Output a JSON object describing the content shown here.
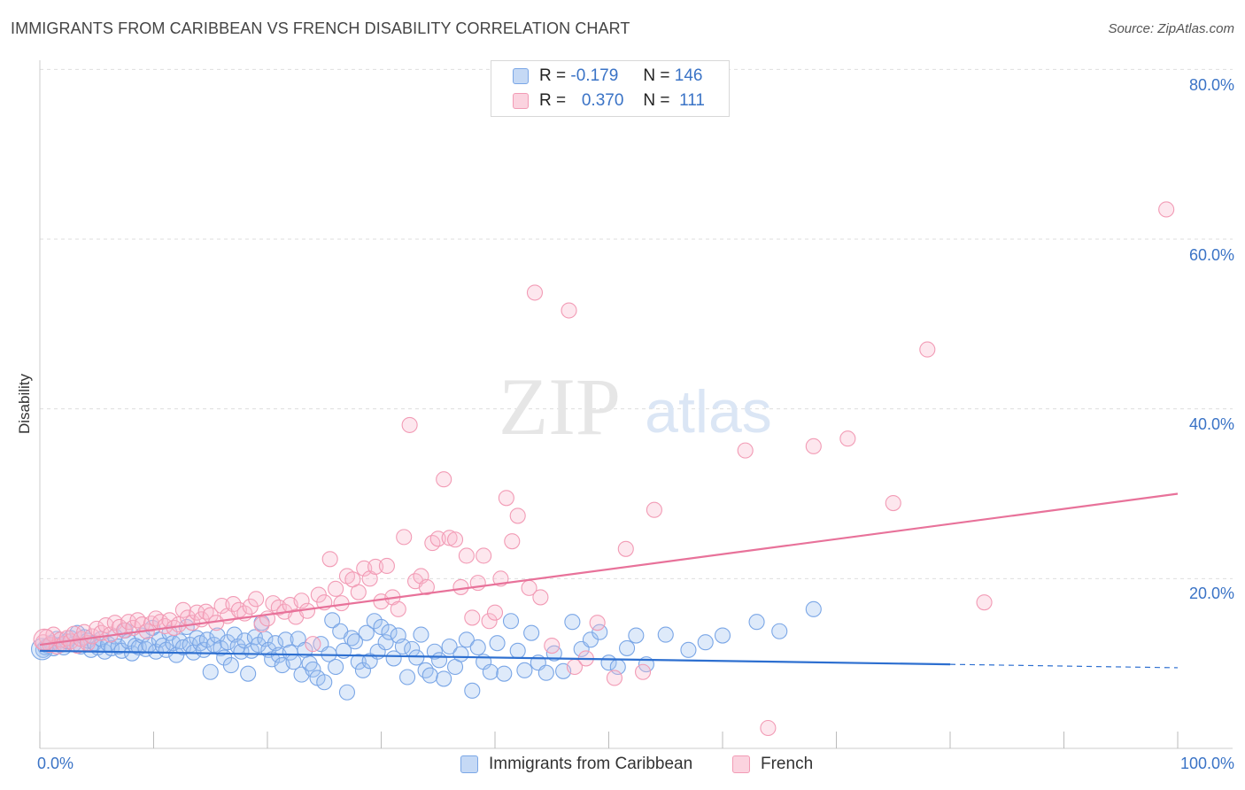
{
  "title": "IMMIGRANTS FROM CARIBBEAN VS FRENCH DISABILITY CORRELATION CHART",
  "source": "Source: ZipAtlas.com",
  "watermark": {
    "zip": "ZIP",
    "atlas": "atlas"
  },
  "legend": {
    "rows": [
      {
        "r_label": "R =",
        "r_value": "-0.179",
        "n_label": "N =",
        "n_value": "146",
        "color": "#7aa6e6"
      },
      {
        "r_label": "R =",
        "r_value": "0.370",
        "n_label": "N =",
        "n_value": "111",
        "color": "#f29bb5"
      }
    ]
  },
  "bottom_legend": [
    {
      "label": "Immigrants from Caribbean",
      "color": "#7aa6e6"
    },
    {
      "label": "French",
      "color": "#f29bb5"
    }
  ],
  "chart_data": {
    "type": "scatter",
    "title": "IMMIGRANTS FROM CARIBBEAN VS FRENCH DISABILITY CORRELATION CHART",
    "xlabel": "",
    "ylabel": "Disability",
    "xlim": [
      0,
      100
    ],
    "ylim": [
      0,
      80
    ],
    "x_tick_labels": [
      "0.0%",
      "100.0%"
    ],
    "y_ticks": [
      20,
      40,
      60,
      80
    ],
    "y_tick_labels": [
      "20.0%",
      "40.0%",
      "60.0%",
      "80.0%"
    ],
    "grid": true,
    "legend_position": "top-center",
    "series": [
      {
        "name": "Immigrants from Caribbean",
        "color": "#7aa6e6",
        "line_color": "#2d6fd0",
        "trend": {
          "x": [
            0,
            80
          ],
          "y": [
            11.5,
            9.9
          ],
          "dashed_to": [
            100,
            9.5
          ]
        },
        "points": [
          [
            0.3,
            11.6
          ],
          [
            0.5,
            11.9
          ],
          [
            0.7,
            12.1
          ],
          [
            1.0,
            12.4
          ],
          [
            1.2,
            11.8
          ],
          [
            1.5,
            12.9
          ],
          [
            1.8,
            12.2
          ],
          [
            2.1,
            11.9
          ],
          [
            2.4,
            12.6
          ],
          [
            2.7,
            13.0
          ],
          [
            3.0,
            12.3
          ],
          [
            3.3,
            13.6
          ],
          [
            3.6,
            12.0
          ],
          [
            3.9,
            13.1
          ],
          [
            4.2,
            12.7
          ],
          [
            4.5,
            11.6
          ],
          [
            4.8,
            12.4
          ],
          [
            5.1,
            11.9
          ],
          [
            5.4,
            12.9
          ],
          [
            5.7,
            11.4
          ],
          [
            6.0,
            12.3
          ],
          [
            6.3,
            11.8
          ],
          [
            6.6,
            13.2
          ],
          [
            6.9,
            12.0
          ],
          [
            7.2,
            11.5
          ],
          [
            7.5,
            13.9
          ],
          [
            7.8,
            12.6
          ],
          [
            8.1,
            11.2
          ],
          [
            8.4,
            12.1
          ],
          [
            8.7,
            11.9
          ],
          [
            9.0,
            13.3
          ],
          [
            9.3,
            11.7
          ],
          [
            9.6,
            12.2
          ],
          [
            9.9,
            14.2
          ],
          [
            10.2,
            11.4
          ],
          [
            10.5,
            12.8
          ],
          [
            10.8,
            12.1
          ],
          [
            11.1,
            11.6
          ],
          [
            11.4,
            13.6
          ],
          [
            11.7,
            12.4
          ],
          [
            12.0,
            11.0
          ],
          [
            12.3,
            12.6
          ],
          [
            12.6,
            11.9
          ],
          [
            12.9,
            14.3
          ],
          [
            13.2,
            12.2
          ],
          [
            13.5,
            11.3
          ],
          [
            13.8,
            13.0
          ],
          [
            14.1,
            12.4
          ],
          [
            14.4,
            11.6
          ],
          [
            14.7,
            12.8
          ],
          [
            15.0,
            9.0
          ],
          [
            15.3,
            12.2
          ],
          [
            15.6,
            13.3
          ],
          [
            15.9,
            11.8
          ],
          [
            16.2,
            10.7
          ],
          [
            16.5,
            12.5
          ],
          [
            16.8,
            9.8
          ],
          [
            17.1,
            13.4
          ],
          [
            17.4,
            12.0
          ],
          [
            17.7,
            11.4
          ],
          [
            18.0,
            12.7
          ],
          [
            18.3,
            8.8
          ],
          [
            18.6,
            11.5
          ],
          [
            18.9,
            13.1
          ],
          [
            19.2,
            12.2
          ],
          [
            19.5,
            14.8
          ],
          [
            19.8,
            12.9
          ],
          [
            20.1,
            11.6
          ],
          [
            20.4,
            10.5
          ],
          [
            20.7,
            12.4
          ],
          [
            21.0,
            11.0
          ],
          [
            21.3,
            9.8
          ],
          [
            21.6,
            12.8
          ],
          [
            22.0,
            11.3
          ],
          [
            22.3,
            10.2
          ],
          [
            22.7,
            12.9
          ],
          [
            23.0,
            8.7
          ],
          [
            23.3,
            11.6
          ],
          [
            23.7,
            10.0
          ],
          [
            24.0,
            9.3
          ],
          [
            24.4,
            8.3
          ],
          [
            24.7,
            12.3
          ],
          [
            25.0,
            7.8
          ],
          [
            25.4,
            11.1
          ],
          [
            25.7,
            15.1
          ],
          [
            26.0,
            9.6
          ],
          [
            26.4,
            13.8
          ],
          [
            26.7,
            11.5
          ],
          [
            27.0,
            6.6
          ],
          [
            27.4,
            13.0
          ],
          [
            27.7,
            12.6
          ],
          [
            28.0,
            10.2
          ],
          [
            28.4,
            9.2
          ],
          [
            28.7,
            13.6
          ],
          [
            29.0,
            10.3
          ],
          [
            29.4,
            15.0
          ],
          [
            29.7,
            11.4
          ],
          [
            30.0,
            14.3
          ],
          [
            30.4,
            12.5
          ],
          [
            30.7,
            13.7
          ],
          [
            31.1,
            10.6
          ],
          [
            31.5,
            13.3
          ],
          [
            31.9,
            12.0
          ],
          [
            32.3,
            8.4
          ],
          [
            32.7,
            11.7
          ],
          [
            33.1,
            10.7
          ],
          [
            33.5,
            13.4
          ],
          [
            33.9,
            9.2
          ],
          [
            34.3,
            8.6
          ],
          [
            34.7,
            11.4
          ],
          [
            35.1,
            10.4
          ],
          [
            35.5,
            8.2
          ],
          [
            36.0,
            12.0
          ],
          [
            36.5,
            9.6
          ],
          [
            37.0,
            11.1
          ],
          [
            37.5,
            12.8
          ],
          [
            38.0,
            6.8
          ],
          [
            38.5,
            11.9
          ],
          [
            39.0,
            10.2
          ],
          [
            39.6,
            9.0
          ],
          [
            40.2,
            12.4
          ],
          [
            40.8,
            8.8
          ],
          [
            41.4,
            15.0
          ],
          [
            42.0,
            11.5
          ],
          [
            42.6,
            9.2
          ],
          [
            43.2,
            13.6
          ],
          [
            43.8,
            10.1
          ],
          [
            44.5,
            8.9
          ],
          [
            45.2,
            11.2
          ],
          [
            46.0,
            9.1
          ],
          [
            46.8,
            14.9
          ],
          [
            47.6,
            11.7
          ],
          [
            48.4,
            12.8
          ],
          [
            49.2,
            13.7
          ],
          [
            50.0,
            10.1
          ],
          [
            50.8,
            9.6
          ],
          [
            51.6,
            11.8
          ],
          [
            52.4,
            13.3
          ],
          [
            53.3,
            9.9
          ],
          [
            55.0,
            13.4
          ],
          [
            57.0,
            11.6
          ],
          [
            58.5,
            12.5
          ],
          [
            60.0,
            13.3
          ],
          [
            63.0,
            14.9
          ],
          [
            65.0,
            13.8
          ],
          [
            68.0,
            16.4
          ]
        ]
      },
      {
        "name": "French",
        "color": "#f29bb5",
        "line_color": "#e8729a",
        "trend": {
          "x": [
            0,
            100
          ],
          "y": [
            12.2,
            30.0
          ]
        },
        "points": [
          [
            0.3,
            12.5
          ],
          [
            0.6,
            13.1
          ],
          [
            0.9,
            12.2
          ],
          [
            1.2,
            13.4
          ],
          [
            1.5,
            12.0
          ],
          [
            1.8,
            12.8
          ],
          [
            2.1,
            12.3
          ],
          [
            2.4,
            13.0
          ],
          [
            2.7,
            12.6
          ],
          [
            3.0,
            13.5
          ],
          [
            3.3,
            12.1
          ],
          [
            3.6,
            12.9
          ],
          [
            3.9,
            13.7
          ],
          [
            4.2,
            12.4
          ],
          [
            4.6,
            13.2
          ],
          [
            5.0,
            14.1
          ],
          [
            5.4,
            13.6
          ],
          [
            5.8,
            14.5
          ],
          [
            6.2,
            13.4
          ],
          [
            6.6,
            14.8
          ],
          [
            7.0,
            14.3
          ],
          [
            7.4,
            13.9
          ],
          [
            7.8,
            14.9
          ],
          [
            8.2,
            14.2
          ],
          [
            8.6,
            15.1
          ],
          [
            9.0,
            14.6
          ],
          [
            9.4,
            13.8
          ],
          [
            9.8,
            14.7
          ],
          [
            10.2,
            15.3
          ],
          [
            10.6,
            14.9
          ],
          [
            11.0,
            14.4
          ],
          [
            11.4,
            15.1
          ],
          [
            11.8,
            14.2
          ],
          [
            12.2,
            14.6
          ],
          [
            12.6,
            16.3
          ],
          [
            13.0,
            15.4
          ],
          [
            13.4,
            14.8
          ],
          [
            13.8,
            16.0
          ],
          [
            14.2,
            15.2
          ],
          [
            14.6,
            16.1
          ],
          [
            15.0,
            15.7
          ],
          [
            15.5,
            14.8
          ],
          [
            16.0,
            16.8
          ],
          [
            16.5,
            15.6
          ],
          [
            17.0,
            17.0
          ],
          [
            17.5,
            16.3
          ],
          [
            18.0,
            15.9
          ],
          [
            18.5,
            16.7
          ],
          [
            19.0,
            17.6
          ],
          [
            19.5,
            14.6
          ],
          [
            20.0,
            15.3
          ],
          [
            20.5,
            17.1
          ],
          [
            21.0,
            16.6
          ],
          [
            21.5,
            16.1
          ],
          [
            22.0,
            16.9
          ],
          [
            22.5,
            15.5
          ],
          [
            23.0,
            17.4
          ],
          [
            23.5,
            16.2
          ],
          [
            24.0,
            12.3
          ],
          [
            24.5,
            18.1
          ],
          [
            25.0,
            17.2
          ],
          [
            25.5,
            22.3
          ],
          [
            26.0,
            18.8
          ],
          [
            26.5,
            17.1
          ],
          [
            27.0,
            20.3
          ],
          [
            27.5,
            19.9
          ],
          [
            28.0,
            18.4
          ],
          [
            28.5,
            21.2
          ],
          [
            29.0,
            20.0
          ],
          [
            29.5,
            21.4
          ],
          [
            30.0,
            17.3
          ],
          [
            30.5,
            21.5
          ],
          [
            31.0,
            17.8
          ],
          [
            31.5,
            16.4
          ],
          [
            32.0,
            24.9
          ],
          [
            32.5,
            38.1
          ],
          [
            33.0,
            19.7
          ],
          [
            33.5,
            20.3
          ],
          [
            34.0,
            19.0
          ],
          [
            34.5,
            24.2
          ],
          [
            35.0,
            24.7
          ],
          [
            35.5,
            31.7
          ],
          [
            36.0,
            24.8
          ],
          [
            36.5,
            24.6
          ],
          [
            37.0,
            19.0
          ],
          [
            37.5,
            22.7
          ],
          [
            38.0,
            15.4
          ],
          [
            38.5,
            19.5
          ],
          [
            39.0,
            22.7
          ],
          [
            39.5,
            15.0
          ],
          [
            40.0,
            16.0
          ],
          [
            40.5,
            20.0
          ],
          [
            41.0,
            29.5
          ],
          [
            41.5,
            24.4
          ],
          [
            42.0,
            27.4
          ],
          [
            43.0,
            18.9
          ],
          [
            43.5,
            53.7
          ],
          [
            44.0,
            17.8
          ],
          [
            45.0,
            12.1
          ],
          [
            46.5,
            51.6
          ],
          [
            47.0,
            9.6
          ],
          [
            48.0,
            10.6
          ],
          [
            49.0,
            14.8
          ],
          [
            50.5,
            8.3
          ],
          [
            51.5,
            23.5
          ],
          [
            53.0,
            9.0
          ],
          [
            54.0,
            28.1
          ],
          [
            62.0,
            35.1
          ],
          [
            64.0,
            2.4
          ],
          [
            68.0,
            35.6
          ],
          [
            71.0,
            36.5
          ],
          [
            75.0,
            28.9
          ],
          [
            78.0,
            47.0
          ],
          [
            83.0,
            17.2
          ],
          [
            99.0,
            63.5
          ]
        ]
      }
    ]
  }
}
